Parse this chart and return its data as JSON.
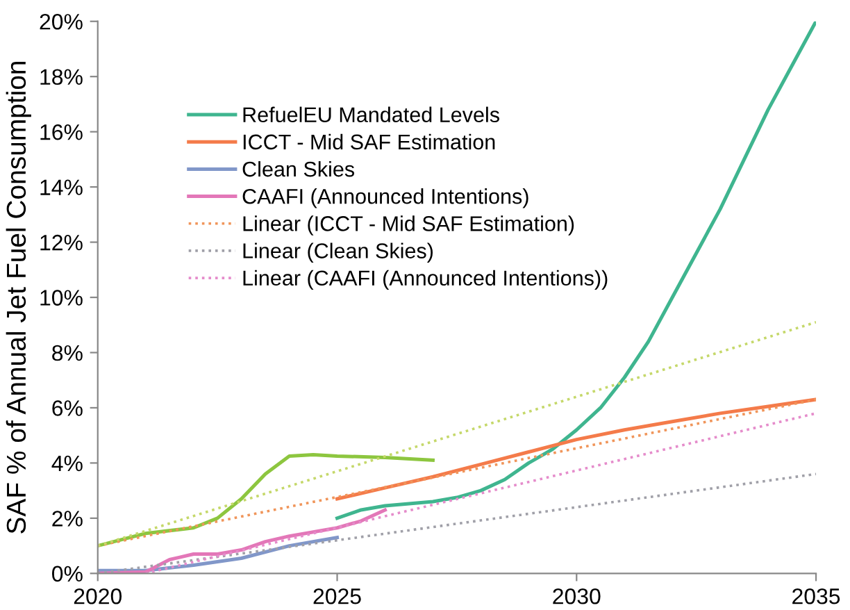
{
  "chart_data": {
    "type": "line",
    "ylabel": "SAF % of Annual Jet Fuel Consumption",
    "xlim": [
      2020,
      2035
    ],
    "xticks": [
      2020,
      2025,
      2030,
      2035
    ],
    "ylim": [
      0,
      20
    ],
    "yticks": [
      {
        "value": 0,
        "label": "0%"
      },
      {
        "value": 2,
        "label": "2%"
      },
      {
        "value": 4,
        "label": "4%"
      },
      {
        "value": 6,
        "label": "6%"
      },
      {
        "value": 8,
        "label": "8%"
      },
      {
        "value": 10,
        "label": "10%"
      },
      {
        "value": 12,
        "label": "12%"
      },
      {
        "value": 14,
        "label": "14%"
      },
      {
        "value": 16,
        "label": "16%"
      },
      {
        "value": 18,
        "label": "18%"
      },
      {
        "value": 20,
        "label": "20%"
      }
    ],
    "grid": false,
    "legend": "top left",
    "marker": "none",
    "series": [
      {
        "name": "RefuelEU Mandated Levels",
        "color": "#3fb58f",
        "line_style": "solid",
        "x": [
          2025,
          2025.5,
          2026,
          2027,
          2027.5,
          2028,
          2028.5,
          2029,
          2029.5,
          2030,
          2030.5,
          2031,
          2031.5,
          2032,
          2032.5,
          2033,
          2033.5,
          2034,
          2034.5,
          2035
        ],
        "values": [
          2.0,
          2.3,
          2.45,
          2.6,
          2.75,
          3.0,
          3.4,
          4.0,
          4.5,
          5.2,
          6.0,
          7.1,
          8.4,
          10.0,
          11.6,
          13.2,
          15.0,
          16.8,
          18.4,
          20.0
        ]
      },
      {
        "name": "ICCT - Mid SAF Estimation",
        "color": "#f47b4a",
        "line_style": "solid",
        "x": [
          2025,
          2026,
          2027,
          2028,
          2029,
          2030,
          2031,
          2032,
          2033,
          2034,
          2035
        ],
        "values": [
          2.7,
          3.1,
          3.5,
          3.95,
          4.4,
          4.85,
          5.2,
          5.5,
          5.8,
          6.05,
          6.3
        ]
      },
      {
        "name": "Clean Skies",
        "color": "#8197c9",
        "line_style": "solid",
        "x": [
          2020,
          2021,
          2022,
          2023,
          2024,
          2025
        ],
        "values": [
          0.1,
          0.1,
          0.3,
          0.55,
          1.0,
          1.3
        ]
      },
      {
        "name": "CAAFI (Announced Intentions)",
        "color": "#e377b8",
        "line_style": "solid",
        "x": [
          2020,
          2021,
          2021.5,
          2022,
          2022.5,
          2023,
          2023.5,
          2024,
          2025,
          2025.5,
          2026
        ],
        "values": [
          0,
          0.05,
          0.5,
          0.7,
          0.7,
          0.85,
          1.15,
          1.35,
          1.65,
          1.9,
          2.3
        ]
      },
      {
        "color": "#8dc63f",
        "line_style": "solid",
        "x": [
          2020,
          2021,
          2022,
          2022.5,
          2023,
          2023.5,
          2024,
          2024.5,
          2025,
          2026,
          2027
        ],
        "values": [
          1.0,
          1.45,
          1.65,
          2.0,
          2.7,
          3.6,
          4.25,
          4.3,
          4.25,
          4.2,
          4.1
        ]
      },
      {
        "name": "Linear (ICCT - Mid SAF Estimation)",
        "color": "#f0955a",
        "line_style": "dotted",
        "x": [
          2020,
          2035
        ],
        "values": [
          1.0,
          6.3
        ]
      },
      {
        "name": "Linear (Clean Skies)",
        "color": "#a0a0a8",
        "line_style": "dotted",
        "x": [
          2020,
          2035
        ],
        "values": [
          0.0,
          3.6
        ]
      },
      {
        "name": "Linear (CAAFI (Announced Intentions))",
        "color": "#e58ccb",
        "line_style": "dotted",
        "x": [
          2021,
          2035
        ],
        "values": [
          0.0,
          5.8
        ]
      },
      {
        "color": "#c5d86a",
        "line_style": "dotted",
        "x": [
          2020,
          2035
        ],
        "values": [
          1.0,
          9.1
        ]
      }
    ]
  }
}
